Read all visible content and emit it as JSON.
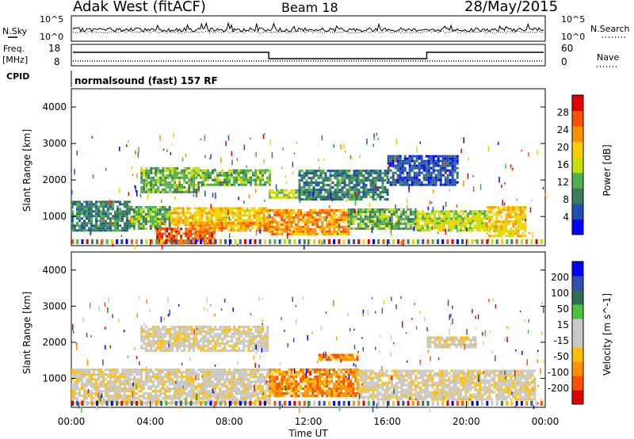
{
  "header": {
    "station": "Adak West (fitACF)",
    "beam": "Beam 18",
    "date": "28/May/2015"
  },
  "panels": {
    "nsky": {
      "left_label": "N.Sky",
      "right_label": "N.Search",
      "left_ticks": [
        "10^5",
        "10^0"
      ],
      "right_ticks": [
        "10^5",
        "10^0"
      ]
    },
    "freq": {
      "left_label_1": "Freq.",
      "left_label_2": "[MHz]",
      "left_ticks": [
        "18",
        "8"
      ],
      "right_label": "Nave",
      "right_ticks": [
        "60",
        "0"
      ],
      "cpid_label": "CPID",
      "cpid_text": "normalsound (fast) 157 RF"
    }
  },
  "colors": {
    "power_scale": [
      "#0000ff",
      "#1f4fb0",
      "#3c7a5c",
      "#50b050",
      "#c8e000",
      "#ffd000",
      "#ff9000",
      "#ff5000",
      "#e00000"
    ],
    "velocity_scale": [
      "#e00000",
      "#ff5000",
      "#ff9000",
      "#ffc000",
      "#c8c8c8",
      "#c8c8c8",
      "#50c040",
      "#307050",
      "#3050b0",
      "#0000ff"
    ],
    "gray_fill": "#c8c8c8"
  },
  "chart_data": [
    {
      "type": "heatmap",
      "name": "power",
      "ylabel": "Slant Range [km]",
      "yticks": [
        "1000",
        "2000",
        "3000",
        "4000"
      ],
      "ylim": [
        200,
        4500
      ],
      "colorbar_label": "Power [dB]",
      "colorbar_ticks": [
        "4",
        "8",
        "12",
        "16",
        "20",
        "24",
        "28"
      ],
      "colorbar_range": [
        0,
        30
      ],
      "bands": [
        {
          "t0": 0.0,
          "t1": 3.0,
          "r0": 650,
          "r1": 1450,
          "level": 2
        },
        {
          "t0": 3.0,
          "t1": 5.0,
          "r0": 700,
          "r1": 1350,
          "level": 3
        },
        {
          "t0": 4.3,
          "t1": 7.3,
          "r0": 300,
          "r1": 700,
          "level": 7
        },
        {
          "t0": 5.0,
          "t1": 10.0,
          "r0": 800,
          "r1": 1300,
          "level": 5
        },
        {
          "t0": 6.0,
          "t1": 10.0,
          "r0": 650,
          "r1": 900,
          "level": 6
        },
        {
          "t0": 10.0,
          "t1": 14.0,
          "r0": 550,
          "r1": 1250,
          "level": 6
        },
        {
          "t0": 14.0,
          "t1": 17.5,
          "r0": 700,
          "r1": 1250,
          "level": 3
        },
        {
          "t0": 17.5,
          "t1": 21.0,
          "r0": 650,
          "r1": 1200,
          "level": 4
        },
        {
          "t0": 21.0,
          "t1": 23.0,
          "r0": 500,
          "r1": 1300,
          "level": 5
        },
        {
          "t0": 3.5,
          "t1": 6.5,
          "r0": 1700,
          "r1": 2400,
          "level": 3
        },
        {
          "t0": 6.5,
          "t1": 10.0,
          "r0": 1900,
          "r1": 2300,
          "level": 3
        },
        {
          "t0": 10.0,
          "t1": 11.5,
          "r0": 1550,
          "r1": 1800,
          "level": 4
        },
        {
          "t0": 11.5,
          "t1": 16.0,
          "r0": 1500,
          "r1": 2300,
          "level": 2
        },
        {
          "t0": 16.0,
          "t1": 19.5,
          "r0": 1900,
          "r1": 2700,
          "level": 1
        }
      ]
    },
    {
      "type": "heatmap",
      "name": "velocity",
      "ylabel": "Slant Range [km]",
      "yticks": [
        "1000",
        "2000",
        "3000",
        "4000"
      ],
      "ylim": [
        200,
        4500
      ],
      "xlabel": "Time UT",
      "xticks": [
        "00:00",
        "04:00",
        "08:00",
        "12:00",
        "16:00",
        "20:00",
        "00:00"
      ],
      "colorbar_label": "Velocity [m s^-1]",
      "colorbar_ticks": [
        "-200",
        "-100",
        "-50",
        "-15",
        "15",
        "50",
        "100",
        "200"
      ],
      "bands": [
        {
          "t0": 0.0,
          "t1": 10.0,
          "r0": 350,
          "r1": 1300,
          "level": 4
        },
        {
          "t0": 10.0,
          "t1": 14.5,
          "r0": 550,
          "r1": 1300,
          "level": 2
        },
        {
          "t0": 14.5,
          "t1": 23.5,
          "r0": 450,
          "r1": 1250,
          "level": 4
        },
        {
          "t0": 12.5,
          "t1": 14.5,
          "r0": 1550,
          "r1": 1700,
          "level": 2
        },
        {
          "t0": 3.5,
          "t1": 10.0,
          "r0": 1800,
          "r1": 2500,
          "level": 4
        },
        {
          "t0": 18.0,
          "t1": 20.5,
          "r0": 1900,
          "r1": 2200,
          "level": 4
        }
      ]
    }
  ]
}
